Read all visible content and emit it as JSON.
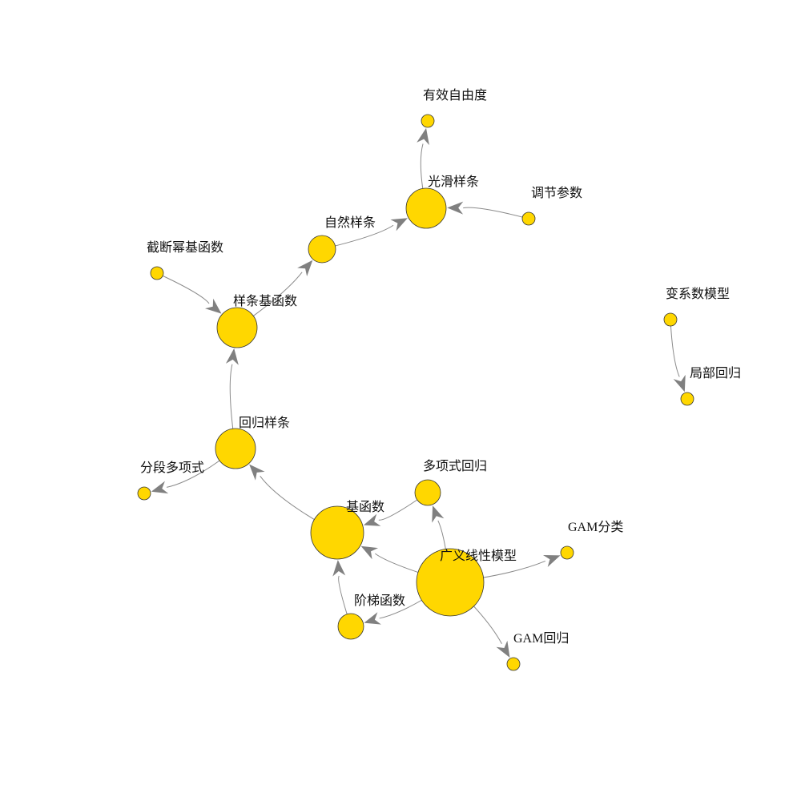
{
  "node_color": "#FFD700",
  "edge_color": "#808080",
  "nodes": [
    {
      "id": "youxiao",
      "label": "有效自由度"
    },
    {
      "id": "guanghua",
      "label": "光滑样条"
    },
    {
      "id": "tiaojie",
      "label": "调节参数"
    },
    {
      "id": "ziran",
      "label": "自然样条"
    },
    {
      "id": "jieduan",
      "label": "截断幂基函数"
    },
    {
      "id": "yangtiaojihanshu",
      "label": "样条基函数"
    },
    {
      "id": "bianxishu",
      "label": "变系数模型"
    },
    {
      "id": "jubu",
      "label": "局部回归"
    },
    {
      "id": "huigui",
      "label": "回归样条"
    },
    {
      "id": "fenduan",
      "label": "分段多项式"
    },
    {
      "id": "duoxiangshi",
      "label": "多项式回归"
    },
    {
      "id": "jihanshu",
      "label": "基函数"
    },
    {
      "id": "gamfenlei",
      "label": "GAM分类"
    },
    {
      "id": "guangyi",
      "label": "广义线性模型"
    },
    {
      "id": "jieti",
      "label": "阶梯函数"
    },
    {
      "id": "gamhuigui",
      "label": "GAM回归"
    }
  ],
  "edges": [
    {
      "from": "guanghua",
      "to": "youxiao"
    },
    {
      "from": "tiaojie",
      "to": "guanghua"
    },
    {
      "from": "ziran",
      "to": "guanghua"
    },
    {
      "from": "yangtiaojihanshu",
      "to": "ziran"
    },
    {
      "from": "jieduan",
      "to": "yangtiaojihanshu"
    },
    {
      "from": "huigui",
      "to": "yangtiaojihanshu"
    },
    {
      "from": "huigui",
      "to": "fenduan"
    },
    {
      "from": "jihanshu",
      "to": "huigui"
    },
    {
      "from": "duoxiangshi",
      "to": "jihanshu"
    },
    {
      "from": "guangyi",
      "to": "duoxiangshi"
    },
    {
      "from": "guangyi",
      "to": "jihanshu"
    },
    {
      "from": "guangyi",
      "to": "jieti"
    },
    {
      "from": "jieti",
      "to": "jihanshu"
    },
    {
      "from": "guangyi",
      "to": "gamfenlei"
    },
    {
      "from": "guangyi",
      "to": "gamhuigui"
    },
    {
      "from": "bianxishu",
      "to": "jubu"
    }
  ]
}
